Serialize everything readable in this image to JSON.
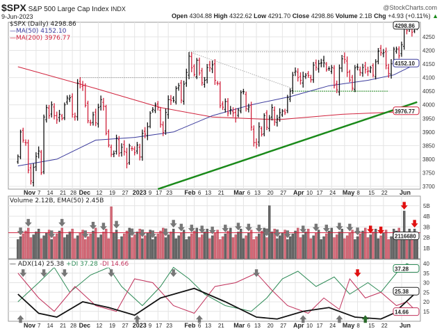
{
  "header": {
    "symbol": "$SPX",
    "name": "S&P 500 Large Cap Index",
    "exchange": "INDX",
    "watermark": "@StockCharts.com",
    "date": "9-Jun-2023",
    "open_label": "Open",
    "open": "4304.88",
    "high_label": "High",
    "high": "4322.62",
    "low_label": "Low",
    "low": "4291.70",
    "close_label": "Close",
    "close": "4298.86",
    "volume_label": "Volume",
    "volume": "2.1B",
    "chg_label": "Chg",
    "chg": "+4.93 (+0.11%)"
  },
  "legend": {
    "price": "$SPX (Daily) 4298.86",
    "ma50": "MA(50) 4152.10",
    "ma200": "MA(200) 3976.77",
    "volume": "Volume 2.12B, EMA(50) 2.45B",
    "adx": "ADX(14) 25.38",
    "pdi": "+DI 37.28",
    "mdi": "-DI 14.66"
  },
  "colors": {
    "up": "#111111",
    "down": "#d0213b",
    "ma50": "#3a3a9c",
    "ma200": "#d0213b",
    "trend": "#1a8a1a",
    "pdi": "#2e8b57",
    "mdi": "#c0305a",
    "adx": "#111111",
    "vol_up": "#666666",
    "vol_down": "#d46a78"
  },
  "chart_data": [
    {
      "type": "ohlc",
      "title": "$SPX S&P 500 Large Cap Index INDX",
      "ylim": [
        3680,
        4330
      ],
      "yticks": [
        "3700",
        "3750",
        "3800",
        "3850",
        "3900",
        "3950",
        "4000",
        "4050",
        "4100",
        "4150",
        "4200",
        "4250"
      ],
      "xticks": [
        {
          "label": "Nov",
          "i": 3,
          "bold": true
        },
        {
          "label": "7",
          "i": 7
        },
        {
          "label": "14",
          "i": 12
        },
        {
          "label": "21",
          "i": 17
        },
        {
          "label": "28",
          "i": 21
        },
        {
          "label": "Dec",
          "i": 24,
          "bold": true
        },
        {
          "label": "12",
          "i": 31
        },
        {
          "label": "19",
          "i": 36
        },
        {
          "label": "27",
          "i": 41
        },
        {
          "label": "2023",
          "i": 45,
          "bold": true
        },
        {
          "label": "9",
          "i": 49
        },
        {
          "label": "17",
          "i": 54
        },
        {
          "label": "23",
          "i": 58
        },
        {
          "label": "Feb",
          "i": 65,
          "bold": true
        },
        {
          "label": "6",
          "i": 68
        },
        {
          "label": "13",
          "i": 73
        },
        {
          "label": "21",
          "i": 78
        },
        {
          "label": "Mar",
          "i": 84,
          "bold": true
        },
        {
          "label": "6",
          "i": 87
        },
        {
          "label": "13",
          "i": 92
        },
        {
          "label": "20",
          "i": 97
        },
        {
          "label": "27",
          "i": 102
        },
        {
          "label": "Apr",
          "i": 107,
          "bold": true
        },
        {
          "label": "10",
          "i": 111
        },
        {
          "label": "17",
          "i": 116
        },
        {
          "label": "24",
          "i": 121
        },
        {
          "label": "May",
          "i": 126,
          "bold": true
        },
        {
          "label": "8",
          "i": 131
        },
        {
          "label": "15",
          "i": 136
        },
        {
          "label": "22",
          "i": 141
        },
        {
          "label": "Jun",
          "i": 148,
          "bold": true
        }
      ],
      "close": [
        3810,
        3900,
        3870,
        3860,
        3760,
        3720,
        3770,
        3810,
        3830,
        3750,
        3955,
        3990,
        3960,
        4000,
        3960,
        3945,
        3965,
        3950,
        4000,
        4025,
        4026,
        3965,
        3958,
        4080,
        4076,
        4071,
        3998,
        3941,
        3933,
        3963,
        3934,
        3990,
        4019,
        3995,
        3895,
        3852,
        3818,
        3821,
        3878,
        3822,
        3844,
        3829,
        3783,
        3849,
        3839,
        3824,
        3852,
        3808,
        3895,
        3892,
        3919,
        3969,
        3983,
        3999,
        3990,
        3928,
        3898,
        3972,
        4019,
        4016,
        4016,
        4060,
        4070,
        4017,
        4076,
        4119,
        4179,
        4136,
        4111,
        4164,
        4117,
        4081,
        4090,
        4137,
        4136,
        4147,
        4090,
        4079,
        3997,
        3991,
        4012,
        3970,
        3982,
        3970,
        3951,
        3981,
        4045,
        4048,
        3986,
        3992,
        3918,
        3861,
        3855,
        3919,
        3891,
        3960,
        3917,
        3951,
        3990,
        3937,
        3948,
        3971,
        3977,
        3971,
        4027,
        4050,
        4109,
        4124,
        4100,
        4090,
        4105,
        4109,
        4108,
        4092,
        4146,
        4138,
        4151,
        4154,
        4154,
        4129,
        4133,
        4137,
        4071,
        4055,
        4135,
        4169,
        4167,
        4119,
        4091,
        4061,
        4136,
        4138,
        4119,
        4137,
        4130,
        4124,
        4136,
        4109,
        4158,
        4198,
        4192,
        4192,
        4145,
        4115,
        4151,
        4205,
        4205,
        4180,
        4221,
        4282,
        4273,
        4283,
        4267,
        4293,
        4299
      ],
      "last_labels": {
        "close": "4298.86",
        "ma50": "4152.10",
        "ma200": "3976.77"
      },
      "ma50": [
        [
          0,
          3775
        ],
        [
          15,
          3800
        ],
        [
          30,
          3870
        ],
        [
          45,
          3880
        ],
        [
          60,
          3900
        ],
        [
          75,
          3960
        ],
        [
          90,
          4000
        ],
        [
          105,
          4030
        ],
        [
          120,
          4070
        ],
        [
          135,
          4090
        ],
        [
          145,
          4110
        ],
        [
          154,
          4152.1
        ]
      ],
      "ma200": [
        [
          0,
          4140
        ],
        [
          30,
          4060
        ],
        [
          55,
          3990
        ],
        [
          75,
          3955
        ],
        [
          100,
          3945
        ],
        [
          125,
          3965
        ],
        [
          154,
          3976.77
        ]
      ],
      "trendline": [
        [
          54,
          3690
        ],
        [
          154,
          4010
        ]
      ],
      "levels": [
        {
          "from": 24,
          "to": 75,
          "value": 4100
        },
        {
          "from": 66,
          "to": 143,
          "value": 4195
        },
        {
          "from": 106,
          "to": 143,
          "value": 4050,
          "color": "green"
        }
      ]
    },
    {
      "type": "bar",
      "name": "Volume",
      "ylim": [
        0,
        5.5
      ],
      "yticks": [
        "1B",
        "2B",
        "3B",
        "4B",
        "5B"
      ],
      "last_label": "2116680",
      "base": 2.35,
      "spikes": [
        [
          36,
          4.9
        ],
        [
          97,
          5.0
        ],
        [
          149,
          4.5
        ],
        [
          145,
          2.8
        ],
        [
          153,
          2.8
        ]
      ],
      "ema": 2.45,
      "arrows_gray": [
        1,
        4,
        13,
        17,
        26,
        29,
        33,
        38,
        44,
        48,
        52,
        57,
        60,
        63,
        67,
        71,
        75,
        80,
        85,
        89,
        93,
        96,
        100,
        104,
        110,
        115,
        119,
        124,
        128,
        131
      ],
      "arrows_red": [
        136,
        140,
        149,
        153
      ]
    },
    {
      "type": "line",
      "name": "ADX",
      "ylim": [
        8,
        42
      ],
      "yticks": [
        "15",
        "20",
        "25",
        "30",
        "35",
        "40"
      ],
      "last_labels": {
        "pdi": "37.28",
        "adx": "25.38",
        "mdi": "14.66"
      },
      "adx": [
        [
          0,
          24
        ],
        [
          8,
          14
        ],
        [
          15,
          12
        ],
        [
          25,
          20
        ],
        [
          35,
          17
        ],
        [
          45,
          13
        ],
        [
          55,
          22
        ],
        [
          68,
          27
        ],
        [
          80,
          20
        ],
        [
          92,
          12
        ],
        [
          100,
          11
        ],
        [
          110,
          15
        ],
        [
          120,
          17
        ],
        [
          130,
          12
        ],
        [
          140,
          11
        ],
        [
          145,
          14
        ],
        [
          154,
          25.38
        ]
      ],
      "pdi": [
        [
          0,
          20
        ],
        [
          8,
          30
        ],
        [
          14,
          38
        ],
        [
          20,
          25
        ],
        [
          28,
          34
        ],
        [
          35,
          38
        ],
        [
          40,
          28
        ],
        [
          48,
          18
        ],
        [
          55,
          28
        ],
        [
          60,
          38
        ],
        [
          66,
          32
        ],
        [
          72,
          24
        ],
        [
          80,
          18
        ],
        [
          90,
          15
        ],
        [
          96,
          22
        ],
        [
          102,
          32
        ],
        [
          108,
          36
        ],
        [
          115,
          28
        ],
        [
          122,
          33
        ],
        [
          128,
          24
        ],
        [
          135,
          30
        ],
        [
          140,
          25
        ],
        [
          146,
          35
        ],
        [
          150,
          40
        ],
        [
          154,
          37.28
        ]
      ],
      "mdi": [
        [
          0,
          35
        ],
        [
          8,
          22
        ],
        [
          14,
          15
        ],
        [
          22,
          28
        ],
        [
          30,
          18
        ],
        [
          38,
          15
        ],
        [
          45,
          32
        ],
        [
          52,
          30
        ],
        [
          60,
          18
        ],
        [
          68,
          14
        ],
        [
          76,
          28
        ],
        [
          84,
          30
        ],
        [
          92,
          35
        ],
        [
          98,
          26
        ],
        [
          104,
          18
        ],
        [
          112,
          14
        ],
        [
          118,
          22
        ],
        [
          124,
          16
        ],
        [
          128,
          32
        ],
        [
          134,
          22
        ],
        [
          140,
          25
        ],
        [
          146,
          18
        ],
        [
          150,
          20
        ],
        [
          154,
          14.66
        ]
      ],
      "arrows_down_gray": [
        2,
        10,
        18,
        36,
        60,
        92
      ],
      "arrows_up_gray": [
        1,
        46,
        70,
        110,
        124
      ],
      "arrow_down_red": 131,
      "arrow_up_green": 134
    }
  ]
}
